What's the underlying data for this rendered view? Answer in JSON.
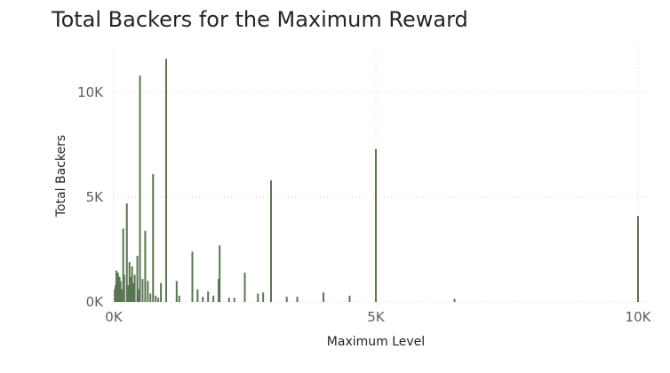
{
  "chart_data": {
    "type": "bar",
    "title": "Total Backers for the Maximum Reward",
    "xlabel": "Maximum Level",
    "ylabel": "Total Backers",
    "xlim": [
      0,
      10000
    ],
    "ylim": [
      0,
      11500
    ],
    "x_ticks": [
      {
        "value": 0,
        "label": "0K"
      },
      {
        "value": 5000,
        "label": "5K"
      },
      {
        "value": 10000,
        "label": "10K"
      }
    ],
    "y_ticks": [
      {
        "value": 0,
        "label": "0K"
      },
      {
        "value": 5000,
        "label": "5K"
      },
      {
        "value": 10000,
        "label": "10K"
      }
    ],
    "grid": true,
    "bar_color": "#5b7553",
    "points": [
      {
        "x": 20,
        "y": 600
      },
      {
        "x": 35,
        "y": 800
      },
      {
        "x": 50,
        "y": 1500
      },
      {
        "x": 65,
        "y": 900
      },
      {
        "x": 80,
        "y": 1400
      },
      {
        "x": 95,
        "y": 700
      },
      {
        "x": 110,
        "y": 1200
      },
      {
        "x": 130,
        "y": 1000
      },
      {
        "x": 150,
        "y": 600
      },
      {
        "x": 180,
        "y": 3500
      },
      {
        "x": 200,
        "y": 1300
      },
      {
        "x": 250,
        "y": 4700
      },
      {
        "x": 280,
        "y": 800
      },
      {
        "x": 300,
        "y": 1900
      },
      {
        "x": 330,
        "y": 1200
      },
      {
        "x": 350,
        "y": 1700
      },
      {
        "x": 380,
        "y": 900
      },
      {
        "x": 400,
        "y": 1300
      },
      {
        "x": 450,
        "y": 2200
      },
      {
        "x": 480,
        "y": 600
      },
      {
        "x": 500,
        "y": 10800
      },
      {
        "x": 550,
        "y": 1100
      },
      {
        "x": 600,
        "y": 3400
      },
      {
        "x": 650,
        "y": 1000
      },
      {
        "x": 700,
        "y": 400
      },
      {
        "x": 750,
        "y": 6100
      },
      {
        "x": 800,
        "y": 300
      },
      {
        "x": 850,
        "y": 200
      },
      {
        "x": 900,
        "y": 900
      },
      {
        "x": 1000,
        "y": 11600
      },
      {
        "x": 1200,
        "y": 1000
      },
      {
        "x": 1250,
        "y": 300
      },
      {
        "x": 1500,
        "y": 2400
      },
      {
        "x": 1600,
        "y": 600
      },
      {
        "x": 1700,
        "y": 250
      },
      {
        "x": 1800,
        "y": 500
      },
      {
        "x": 1900,
        "y": 300
      },
      {
        "x": 2000,
        "y": 1100
      },
      {
        "x": 2020,
        "y": 2700
      },
      {
        "x": 2200,
        "y": 200
      },
      {
        "x": 2300,
        "y": 200
      },
      {
        "x": 2500,
        "y": 1400
      },
      {
        "x": 2750,
        "y": 400
      },
      {
        "x": 2850,
        "y": 450
      },
      {
        "x": 3000,
        "y": 5800
      },
      {
        "x": 3300,
        "y": 250
      },
      {
        "x": 3500,
        "y": 250
      },
      {
        "x": 4000,
        "y": 450
      },
      {
        "x": 4500,
        "y": 300
      },
      {
        "x": 5000,
        "y": 7300
      },
      {
        "x": 6500,
        "y": 150
      },
      {
        "x": 10000,
        "y": 4100
      }
    ]
  }
}
